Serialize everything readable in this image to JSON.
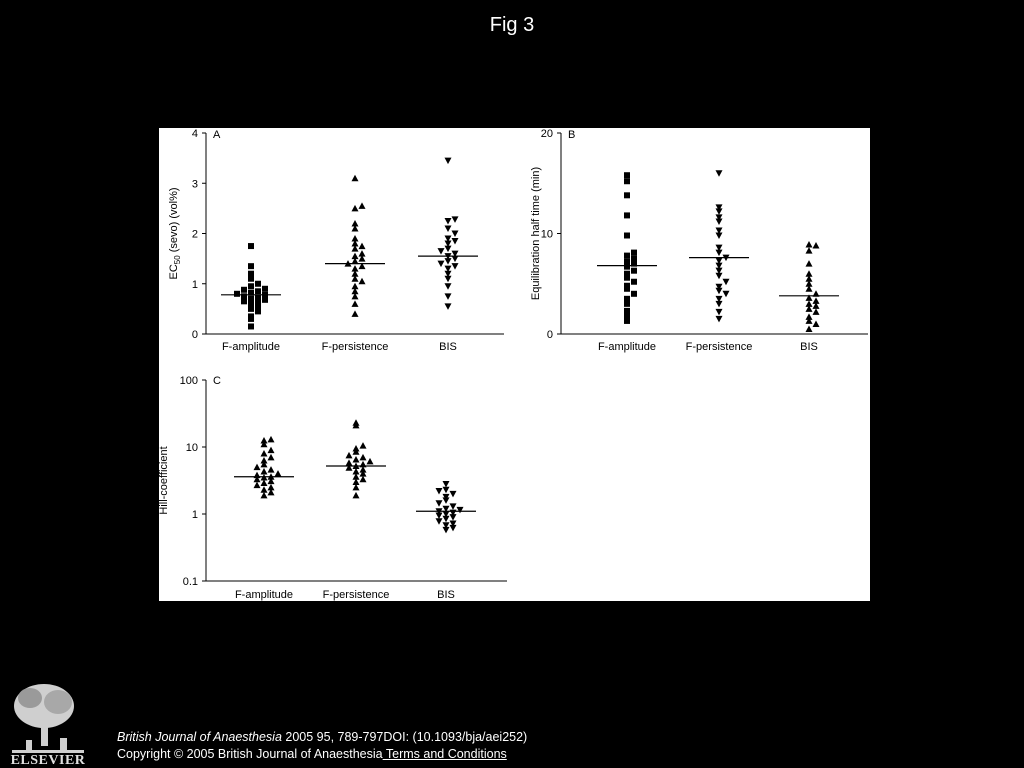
{
  "slide_title": "Fig 3",
  "citation": {
    "journal": "British Journal of Anaesthesia",
    "rest": " 2005 95, 789-797DOI: (10.1093/bja/aei252)",
    "copyright": "Copyright © 2005 British Journal of Anaesthesia",
    "terms_link": " Terms and Conditions"
  },
  "logo": {
    "text": "ELSEVIER"
  },
  "chart_data": [
    {
      "panel": "A",
      "type": "scatter",
      "ylabel": "EC50 (sevo) (vol%)",
      "ylim": [
        0,
        4
      ],
      "yticks": [
        "0",
        "1",
        "2",
        "3",
        "4"
      ],
      "categories": [
        "F-amplitude",
        "F-persistence",
        "BIS"
      ],
      "markers": [
        "square",
        "triangle-up",
        "triangle-down"
      ],
      "medians": [
        0.78,
        1.4,
        1.55
      ],
      "points": [
        [
          0.15,
          0.3,
          0.35,
          0.45,
          0.5,
          0.55,
          0.6,
          0.62,
          0.65,
          0.68,
          0.7,
          0.72,
          0.75,
          0.78,
          0.8,
          0.82,
          0.85,
          0.88,
          0.9,
          0.95,
          1.0,
          1.1,
          1.2,
          1.35,
          1.75
        ],
        [
          0.4,
          0.6,
          0.75,
          0.85,
          0.95,
          1.05,
          1.1,
          1.2,
          1.3,
          1.35,
          1.4,
          1.45,
          1.5,
          1.55,
          1.6,
          1.7,
          1.75,
          1.8,
          1.9,
          2.1,
          2.2,
          2.5,
          2.55,
          3.1
        ],
        [
          0.55,
          0.75,
          0.95,
          1.1,
          1.2,
          1.3,
          1.35,
          1.4,
          1.45,
          1.5,
          1.55,
          1.6,
          1.65,
          1.7,
          1.8,
          1.85,
          1.9,
          2.0,
          2.1,
          2.25,
          2.28,
          3.45
        ]
      ]
    },
    {
      "panel": "B",
      "type": "scatter",
      "ylabel": "Equilibration half time (min)",
      "ylim": [
        0,
        20
      ],
      "yticks": [
        "0",
        "10",
        "20"
      ],
      "categories": [
        "F-amplitude",
        "F-persistence",
        "BIS"
      ],
      "markers": [
        "square",
        "triangle-down",
        "triangle-up"
      ],
      "medians": [
        6.8,
        7.6,
        3.8
      ],
      "points": [
        [
          1.3,
          1.8,
          2.3,
          3.0,
          3.5,
          4.0,
          4.5,
          4.8,
          5.2,
          5.6,
          6.0,
          6.3,
          6.7,
          7.0,
          7.2,
          7.5,
          7.8,
          8.1,
          9.8,
          11.8,
          13.8,
          15.2,
          15.8
        ],
        [
          1.5,
          2.2,
          3.0,
          3.5,
          4.0,
          4.3,
          4.7,
          5.2,
          5.8,
          6.3,
          6.8,
          7.3,
          7.6,
          8.1,
          8.6,
          9.8,
          10.3,
          11.2,
          11.6,
          12.2,
          12.6,
          16.0
        ],
        [
          0.5,
          1.0,
          1.3,
          1.7,
          2.2,
          2.5,
          2.8,
          3.0,
          3.3,
          3.6,
          4.0,
          4.5,
          5.0,
          5.5,
          6.0,
          7.0,
          8.3,
          8.8,
          8.9
        ]
      ]
    },
    {
      "panel": "C",
      "type": "scatter",
      "ylabel": "Hill-coefficient",
      "yscale": "log",
      "ylim": [
        0.1,
        100
      ],
      "yticks": [
        "0.1",
        "1",
        "10",
        "100"
      ],
      "categories": [
        "F-amplitude",
        "F-persistence",
        "BIS"
      ],
      "markers": [
        "triangle-up",
        "triangle-up",
        "triangle-down"
      ],
      "medians": [
        3.6,
        5.2,
        1.1
      ],
      "points": [
        [
          1.9,
          2.1,
          2.3,
          2.5,
          2.7,
          2.9,
          3.1,
          3.3,
          3.5,
          3.6,
          3.8,
          4.0,
          4.3,
          4.6,
          5.0,
          5.5,
          6.3,
          7.0,
          8.0,
          9.0,
          11.0,
          12.5,
          13.0
        ],
        [
          1.9,
          2.5,
          3.0,
          3.3,
          3.6,
          4.0,
          4.3,
          4.6,
          4.9,
          5.2,
          5.5,
          5.8,
          6.1,
          6.5,
          7.0,
          7.5,
          8.5,
          9.5,
          10.5,
          21.0,
          23.0
        ],
        [
          0.58,
          0.62,
          0.68,
          0.72,
          0.78,
          0.85,
          0.9,
          0.95,
          1.0,
          1.05,
          1.1,
          1.15,
          1.2,
          1.3,
          1.45,
          1.6,
          1.8,
          2.0,
          2.2,
          2.3,
          2.8
        ]
      ]
    }
  ]
}
